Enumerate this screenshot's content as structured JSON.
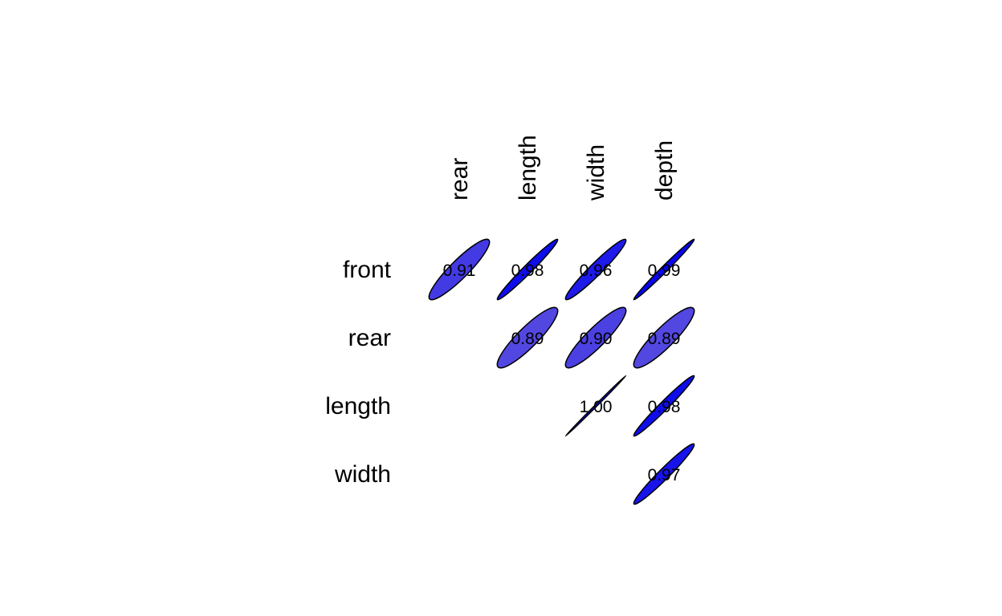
{
  "chart_data": {
    "type": "heatmap",
    "subtype": "correlation-ellipse-matrix",
    "triangle": "upper",
    "row_labels": [
      "front",
      "rear",
      "length",
      "width"
    ],
    "col_labels": [
      "rear",
      "length",
      "width",
      "depth"
    ],
    "cells": [
      {
        "row": "front",
        "col": "rear",
        "value": 0.91,
        "label": "0.91"
      },
      {
        "row": "front",
        "col": "length",
        "value": 0.98,
        "label": "0.98"
      },
      {
        "row": "front",
        "col": "width",
        "value": 0.96,
        "label": "0.96"
      },
      {
        "row": "front",
        "col": "depth",
        "value": 0.99,
        "label": "0.99"
      },
      {
        "row": "rear",
        "col": "length",
        "value": 0.89,
        "label": "0.89"
      },
      {
        "row": "rear",
        "col": "width",
        "value": 0.9,
        "label": "0.90"
      },
      {
        "row": "rear",
        "col": "depth",
        "value": 0.89,
        "label": "0.89"
      },
      {
        "row": "length",
        "col": "width",
        "value": 1.0,
        "label": "1.00"
      },
      {
        "row": "length",
        "col": "depth",
        "value": 0.98,
        "label": "0.98"
      },
      {
        "row": "width",
        "col": "depth",
        "value": 0.97,
        "label": "0.97"
      }
    ],
    "colors": {
      "strong": "#0000ee",
      "weak": "#5a4de0",
      "outline": "#000000"
    }
  }
}
